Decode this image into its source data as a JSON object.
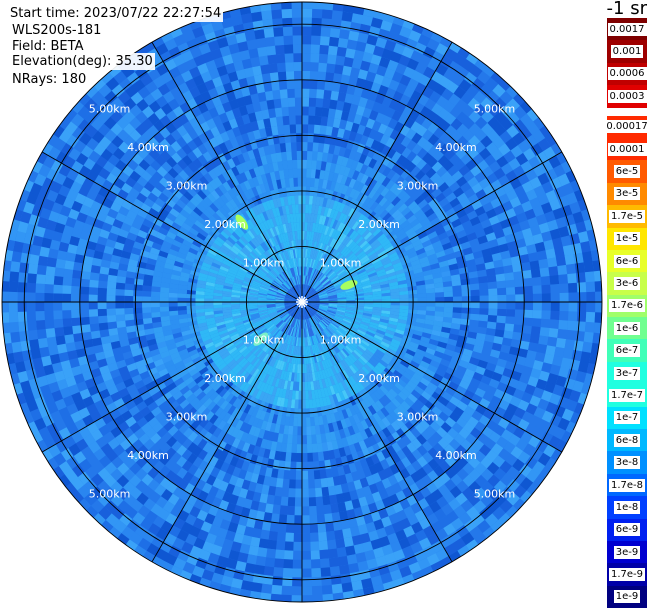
{
  "header": {
    "start_time": "Start time: 2023/07/22 22:27:54",
    "instrument": "WLS200s-181",
    "field": "Field: BETA",
    "elevation": "Elevation(deg): 35.30",
    "nrays": "NRays: 180"
  },
  "colorbar": {
    "title": "-1 sr",
    "top_colors": [
      "#7f0000",
      "#9e0000",
      "#c00000",
      "#e00000"
    ],
    "top_labels": [
      "0.0017",
      "0.001",
      "0.0006",
      "0.0003"
    ],
    "main_colors": [
      "#ff2a00",
      "#ff5a00",
      "#ff8a00",
      "#ffba00",
      "#ffe600",
      "#e8ff2a",
      "#c8ff4a",
      "#a0ff6a",
      "#70ff90",
      "#40ffb8",
      "#20ffe0",
      "#00e0ff",
      "#00b8ff",
      "#0090ff",
      "#0068ff",
      "#0040ff",
      "#0020f0",
      "#0000d0",
      "#0000a8",
      "#000080"
    ],
    "main_labels": [
      "0.00017",
      "0.0001",
      "6e-5",
      "3e-5",
      "1.7e-5",
      "1e-5",
      "6e-6",
      "3e-6",
      "1.7e-6",
      "1e-6",
      "6e-7",
      "3e-7",
      "1.7e-7",
      "1e-7",
      "6e-8",
      "3e-8",
      "1.7e-8",
      "1e-8",
      "6e-9",
      "3e-9",
      "1.7e-9",
      "1e-9"
    ]
  },
  "chart_data": {
    "type": "heatmap",
    "projection": "polar-ppi",
    "field": "BETA",
    "units": "-1 sr",
    "nrays": 180,
    "range_rings_km": [
      1,
      2,
      3,
      4,
      5
    ],
    "ring_labels": [
      "1.00km",
      "2.00km",
      "3.00km",
      "4.00km",
      "5.00km"
    ],
    "max_range_km": 5.4,
    "spokes_deg": [
      0,
      30,
      60,
      90,
      120,
      150,
      180,
      210,
      240,
      270,
      300,
      330
    ],
    "background_level": "3e-8 to 1e-7",
    "near_field_level": "3e-7 to 6e-7",
    "features": [
      {
        "azimuth_deg": 323,
        "range_km": 1.8,
        "level": "3e-6"
      },
      {
        "azimuth_deg": 70,
        "range_km": 0.9,
        "level": "3e-6"
      },
      {
        "azimuth_deg": 228,
        "range_km": 1.0,
        "level": "1e-6"
      }
    ]
  }
}
